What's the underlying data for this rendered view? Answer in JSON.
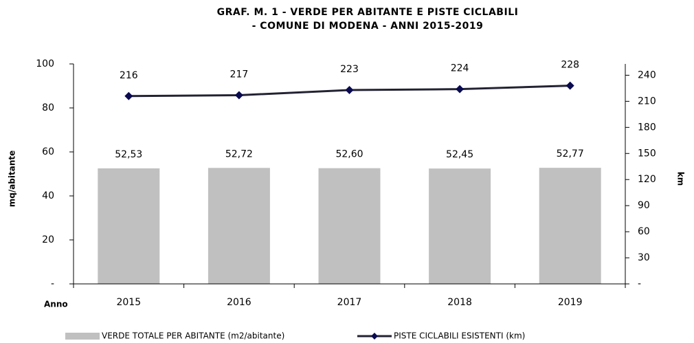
{
  "chart_data": {
    "type": "bar",
    "title": [
      "GRAF.   M. 1 - VERDE PER ABITANTE E PISTE CICLABILI",
      "- COMUNE DI MODENA - ANNI 2015-2019"
    ],
    "x_label": "Anno",
    "y_label": "mq/abitante",
    "y2_label": "km",
    "categories": [
      "2015",
      "2016",
      "2017",
      "2018",
      "2019"
    ],
    "series": [
      {
        "name": "VERDE TOTALE PER ABITANTE (m2/abitante)",
        "type": "bar",
        "color": "#c0c0c0",
        "values": [
          52.53,
          52.72,
          52.6,
          52.45,
          52.77
        ],
        "value_labels": [
          "52,53",
          "52,72",
          "52,60",
          "52,45",
          "52,77"
        ]
      },
      {
        "name": "PISTE CICLABILI ESISTENTI (km)",
        "type": "line",
        "axis": "y2",
        "color": "#222233",
        "marker_color": "#0a0a50",
        "values": [
          216,
          217,
          223,
          224,
          228
        ]
      }
    ],
    "ylim": [
      0,
      100
    ],
    "yticks": [
      {
        "value": 0,
        "label": "-"
      },
      20,
      40,
      60,
      80,
      100
    ],
    "y2lim": [
      0,
      253
    ],
    "y2ticks": [
      {
        "value": 0,
        "label": "-"
      },
      30,
      60,
      90,
      120,
      150,
      180,
      210,
      240
    ],
    "grid": false
  }
}
